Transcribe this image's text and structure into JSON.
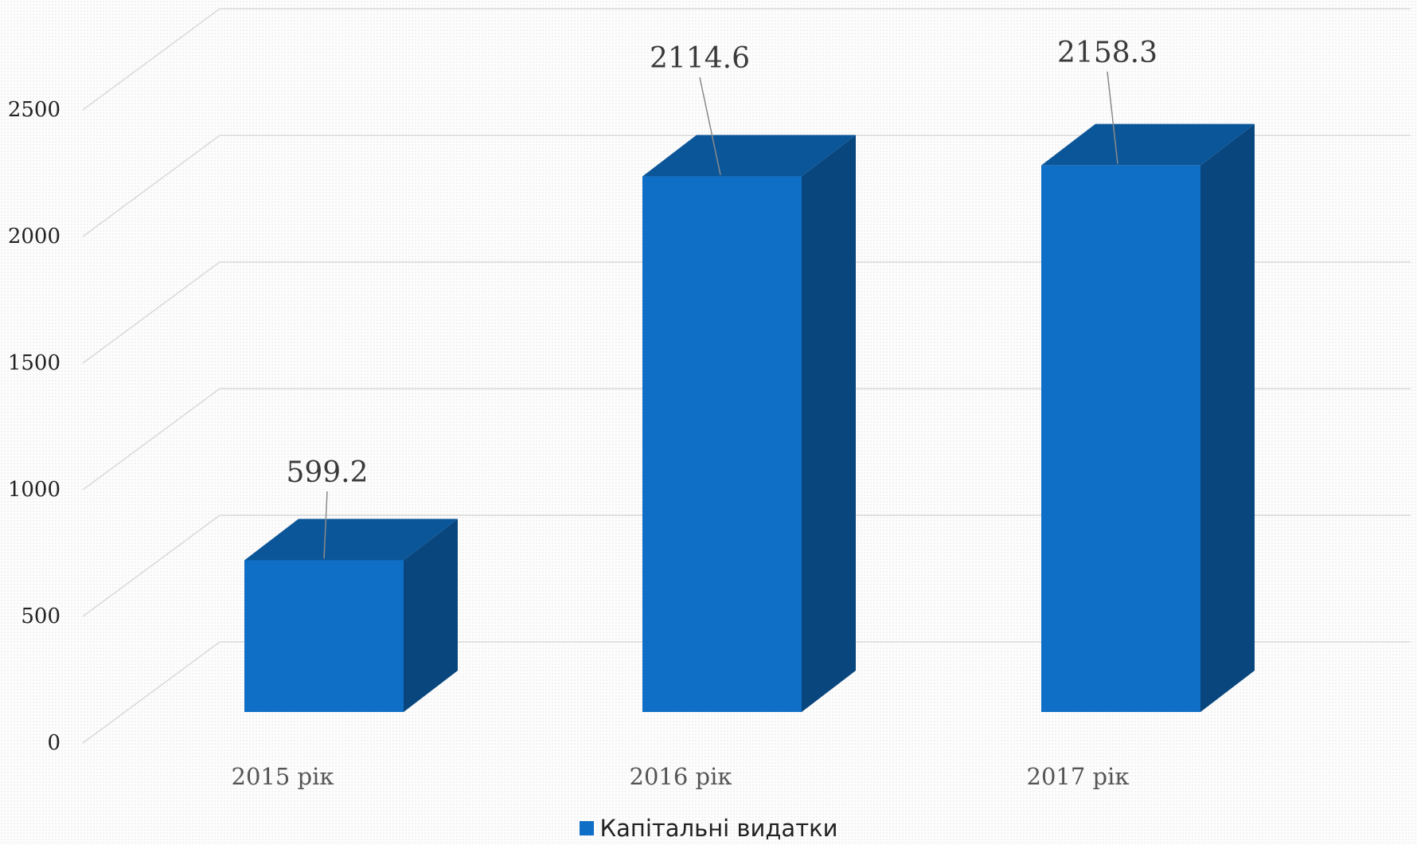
{
  "chart_data": {
    "type": "bar",
    "style": "3d-column",
    "categories": [
      "2015 рік",
      "2016 рік",
      "2017 рік"
    ],
    "series": [
      {
        "name": "Капітальні видатки",
        "values": [
          599.2,
          2114.6,
          2158.3
        ],
        "data_labels": [
          "599.2",
          "2114.6",
          "2158.3"
        ],
        "color": "#0f6fc6",
        "top_color": "#0b5699",
        "side_color": "#09467d"
      }
    ],
    "y_ticks": [
      {
        "value": 0,
        "label": "0"
      },
      {
        "value": 500,
        "label": "500"
      },
      {
        "value": 1000,
        "label": "1000"
      },
      {
        "value": 1500,
        "label": "1500"
      },
      {
        "value": 2000,
        "label": "2000"
      },
      {
        "value": 2500,
        "label": "2500"
      }
    ],
    "ylim": [
      0,
      2500
    ],
    "grid": true,
    "gridline_color": "#d9d9d9",
    "legend_position": "bottom"
  }
}
